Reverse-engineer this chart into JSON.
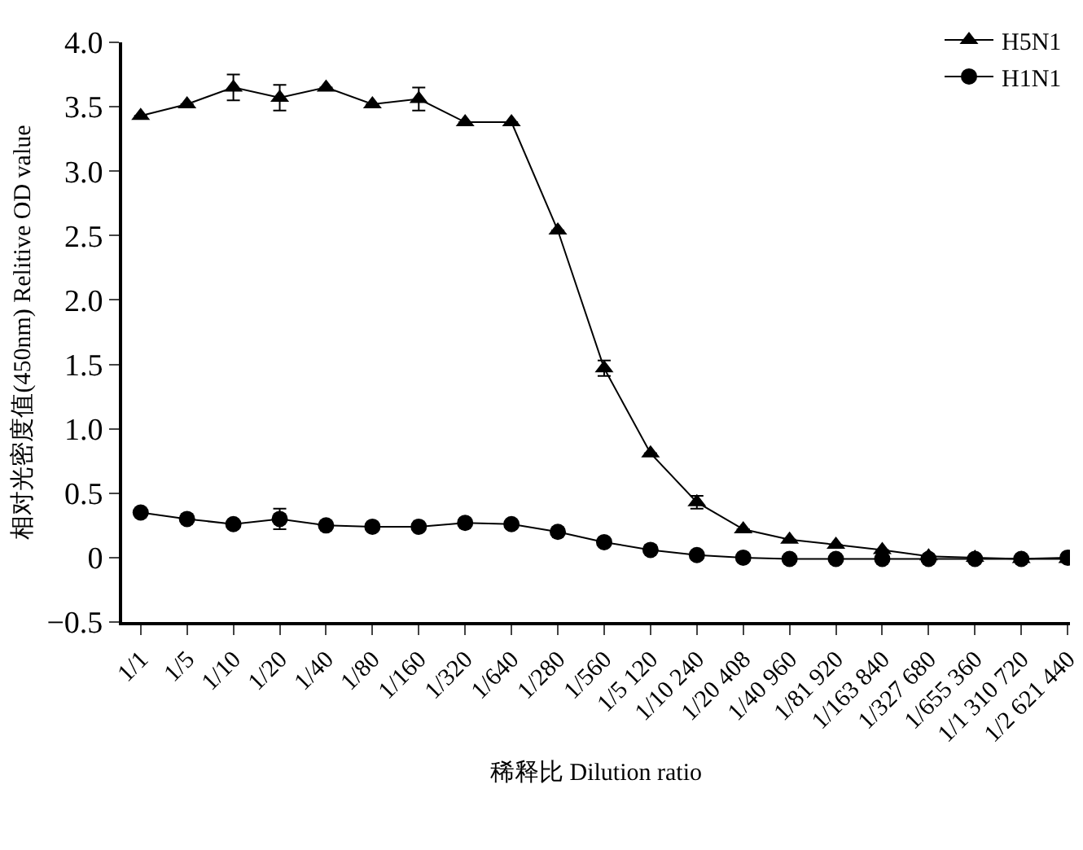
{
  "chart_data": {
    "type": "line",
    "xlabel": "稀释比 Dilution ratio",
    "ylabel": "相对光密度值(450nm) Relitive OD value",
    "categories": [
      "1/1",
      "1/5",
      "1/10",
      "1/20",
      "1/40",
      "1/80",
      "1/160",
      "1/320",
      "1/640",
      "1/280",
      "1/560",
      "1/5 120",
      "1/10 240",
      "1/20 408",
      "1/40 960",
      "1/81 920",
      "1/163 840",
      "1/327 680",
      "1/655 360",
      "1/1 310 720",
      "1/2 621 440"
    ],
    "series": [
      {
        "name": "H5N1",
        "color": "#000000",
        "marker": "triangle",
        "values": [
          3.43,
          3.52,
          3.65,
          3.57,
          3.65,
          3.52,
          3.56,
          3.38,
          3.38,
          2.54,
          1.47,
          0.81,
          0.43,
          0.22,
          0.14,
          0.1,
          0.06,
          0.01,
          0.0,
          -0.01,
          -0.01
        ],
        "errors": [
          null,
          null,
          0.1,
          0.1,
          null,
          null,
          0.09,
          null,
          null,
          null,
          0.06,
          null,
          0.05,
          null,
          null,
          null,
          null,
          null,
          null,
          null,
          null
        ]
      },
      {
        "name": "H1N1",
        "color": "#000000",
        "marker": "circle",
        "values": [
          0.35,
          0.3,
          0.26,
          0.3,
          0.25,
          0.24,
          0.24,
          0.27,
          0.26,
          0.2,
          0.12,
          0.06,
          0.02,
          0.0,
          -0.01,
          -0.01,
          -0.01,
          -0.01,
          -0.01,
          -0.01,
          0.0
        ],
        "errors": [
          null,
          null,
          null,
          0.08,
          null,
          null,
          null,
          null,
          null,
          null,
          null,
          null,
          null,
          null,
          null,
          null,
          null,
          null,
          null,
          null,
          null
        ]
      }
    ],
    "ylim": [
      -0.5,
      4.0
    ],
    "yticks": [
      {
        "value": -0.5,
        "label": "−0.5"
      },
      0,
      {
        "value": 0.5,
        "label": "0.5"
      },
      {
        "value": 1,
        "label": "1.0"
      },
      {
        "value": 1.5,
        "label": "1.5"
      },
      {
        "value": 2,
        "label": "2.0"
      },
      {
        "value": 2.5,
        "label": "2.5"
      },
      {
        "value": 3,
        "label": "3.0"
      },
      {
        "value": 3.5,
        "label": "3.5"
      },
      {
        "value": 4,
        "label": "4.0"
      }
    ],
    "grid": false,
    "legend": "top right",
    "line_style": "solid"
  }
}
